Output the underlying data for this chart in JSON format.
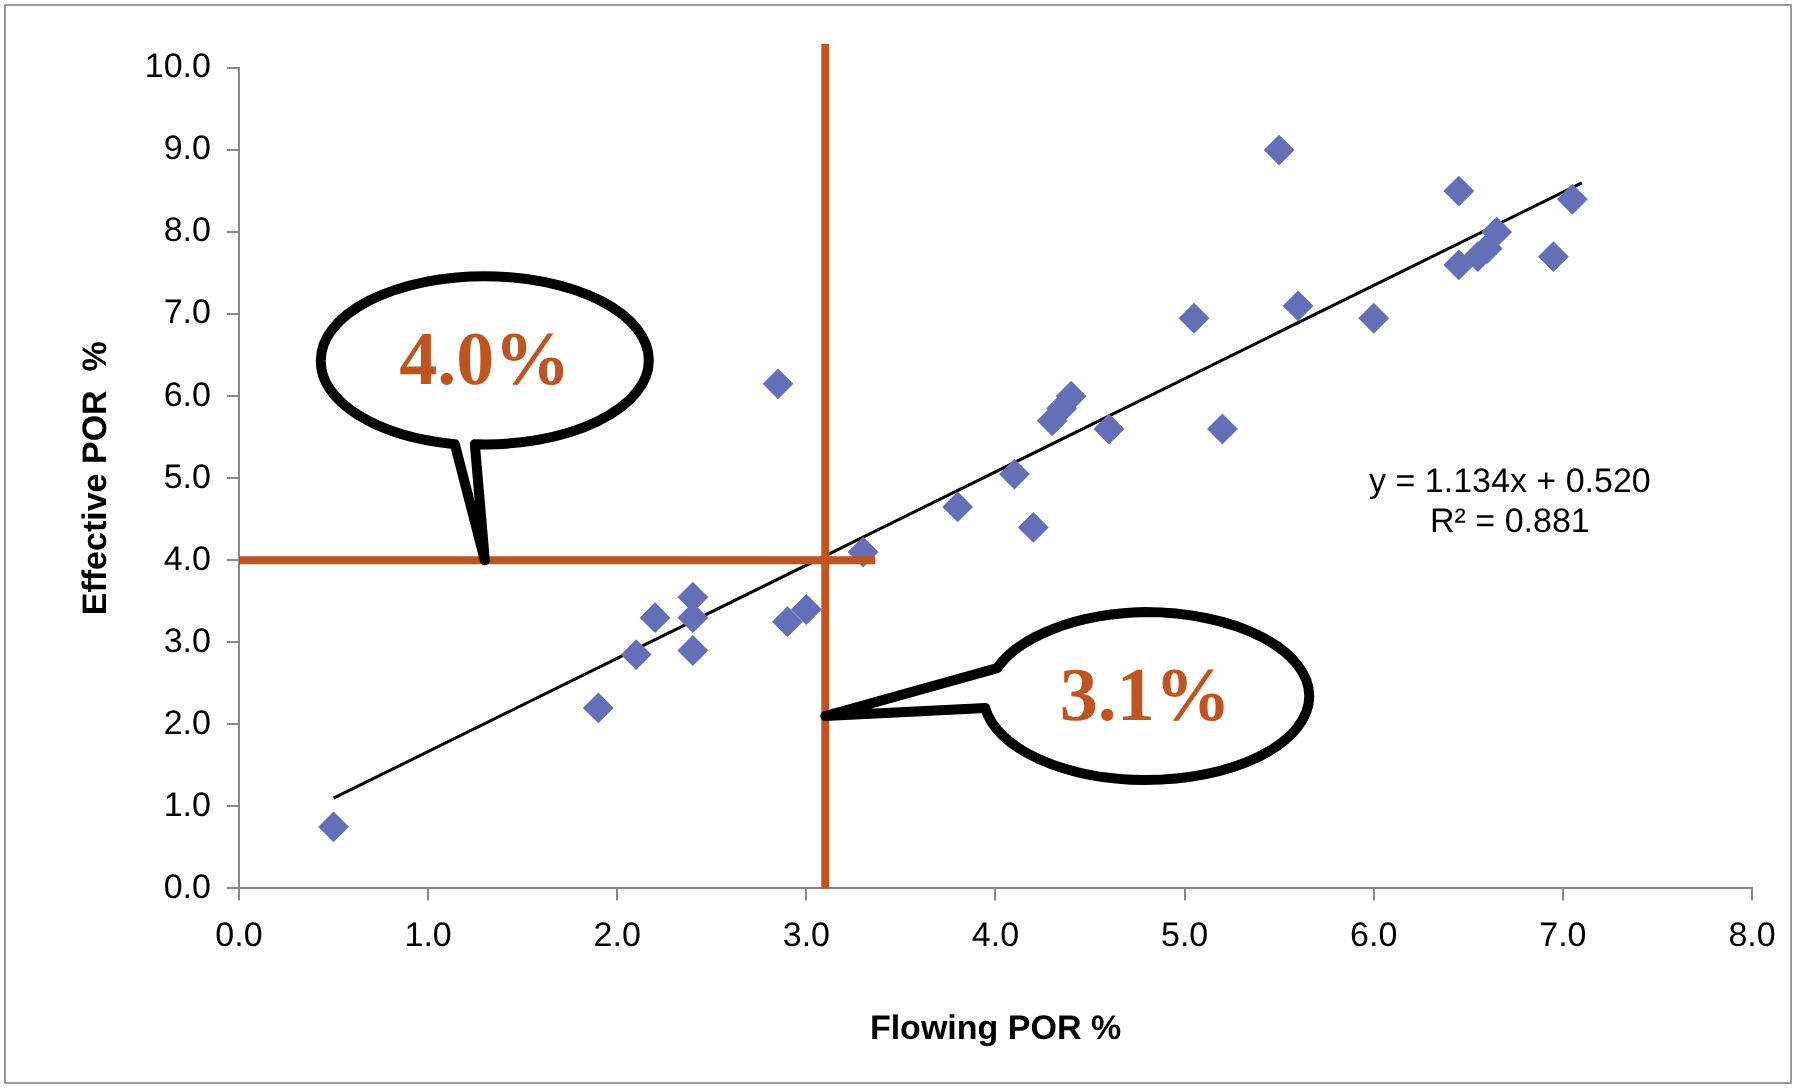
{
  "chart_data": {
    "type": "scatter",
    "xlabel": "Flowing POR %",
    "ylabel": "Effective POR  %",
    "marker": "diamond",
    "grid": false,
    "legend": false,
    "xlim": [
      0,
      8
    ],
    "xticks": [
      {
        "value": 0,
        "label": "0.0"
      },
      {
        "value": 1,
        "label": "1.0"
      },
      {
        "value": 2,
        "label": "2.0"
      },
      {
        "value": 3,
        "label": "3.0"
      },
      {
        "value": 4,
        "label": "4.0"
      },
      {
        "value": 5,
        "label": "5.0"
      },
      {
        "value": 6,
        "label": "6.0"
      },
      {
        "value": 7,
        "label": "7.0"
      },
      {
        "value": 8,
        "label": "8.0"
      }
    ],
    "ylim": [
      0,
      10
    ],
    "yticks": [
      {
        "value": 0,
        "label": "0.0"
      },
      {
        "value": 1,
        "label": "1.0"
      },
      {
        "value": 2,
        "label": "2.0"
      },
      {
        "value": 3,
        "label": "3.0"
      },
      {
        "value": 4,
        "label": "4.0"
      },
      {
        "value": 5,
        "label": "5.0"
      },
      {
        "value": 6,
        "label": "6.0"
      },
      {
        "value": 7,
        "label": "7.0"
      },
      {
        "value": 8,
        "label": "8.0"
      },
      {
        "value": 9,
        "label": "9.0"
      },
      {
        "value": 10,
        "label": "10.0"
      }
    ],
    "series": [
      {
        "type": "scatter",
        "color": "#6370b8",
        "x": [
          0.5,
          1.9,
          2.1,
          2.2,
          2.4,
          2.4,
          2.4,
          2.85,
          2.9,
          3.0,
          3.3,
          3.8,
          4.1,
          4.2,
          4.3,
          4.35,
          4.4,
          4.6,
          5.05,
          5.2,
          5.5,
          5.6,
          6.0,
          6.45,
          6.45,
          6.55,
          6.6,
          6.65,
          6.95,
          7.05
        ],
        "values": [
          0.75,
          2.2,
          2.85,
          3.3,
          3.55,
          3.3,
          2.9,
          6.15,
          3.25,
          3.4,
          4.1,
          4.65,
          5.05,
          4.4,
          5.7,
          5.85,
          6.0,
          5.6,
          6.95,
          5.6,
          9.0,
          7.1,
          6.95,
          8.5,
          7.6,
          7.7,
          7.8,
          8.0,
          7.7,
          8.4
        ]
      },
      {
        "type": "line",
        "color": "#000000",
        "marker": "none",
        "x": [
          0.5,
          7.1
        ],
        "values": [
          1.1,
          8.6
        ]
      }
    ],
    "ref_lines": [
      {
        "axis": "x",
        "value": 3.1,
        "color": "#c0541e"
      },
      {
        "axis": "y",
        "value": 4.0,
        "color": "#c0541e"
      }
    ],
    "annotations": [
      {
        "text": "4.0%",
        "x": 1.3,
        "y": 4.0
      },
      "3.1%",
      "y = 1.134x + 0.520",
      "R² = 0.881"
    ]
  }
}
